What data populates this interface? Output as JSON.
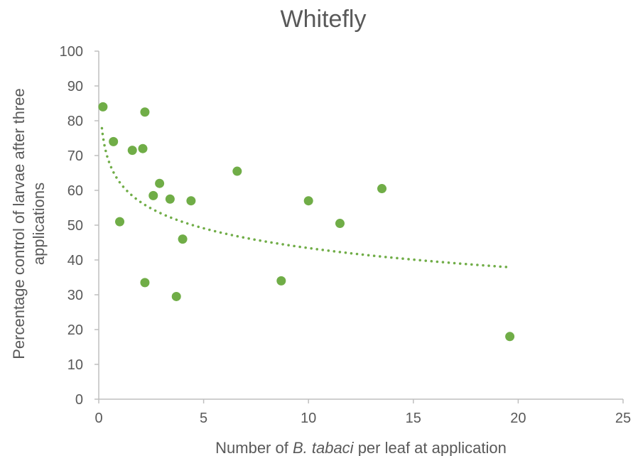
{
  "chart_data": {
    "type": "scatter",
    "title": "Whitefly",
    "xlabel": {
      "prefix": "Number of ",
      "italic": "B. tabaci",
      "suffix": " per leaf at application"
    },
    "ylabel": {
      "line1": "Percentage control of larvae after three",
      "line2": "applications"
    },
    "xlim": [
      0,
      25
    ],
    "ylim": [
      0,
      100
    ],
    "xticks": [
      0,
      5,
      10,
      15,
      20,
      25
    ],
    "yticks": [
      0,
      10,
      20,
      30,
      40,
      50,
      60,
      70,
      80,
      90,
      100
    ],
    "grid": false,
    "colors": {
      "points": "#70ad47",
      "trend": "#70ad47",
      "axis": "#bfbfbf",
      "text": "#595959"
    },
    "series": [
      {
        "points": [
          {
            "x": 0.2,
            "y": 84
          },
          {
            "x": 0.7,
            "y": 74
          },
          {
            "x": 1.0,
            "y": 51
          },
          {
            "x": 1.6,
            "y": 71.5
          },
          {
            "x": 2.1,
            "y": 72
          },
          {
            "x": 2.2,
            "y": 82.5
          },
          {
            "x": 2.2,
            "y": 33.5
          },
          {
            "x": 2.6,
            "y": 58.5
          },
          {
            "x": 2.9,
            "y": 62
          },
          {
            "x": 3.4,
            "y": 57.5
          },
          {
            "x": 3.7,
            "y": 29.5
          },
          {
            "x": 4.0,
            "y": 46
          },
          {
            "x": 4.4,
            "y": 57
          },
          {
            "x": 6.6,
            "y": 65.5
          },
          {
            "x": 8.7,
            "y": 34
          },
          {
            "x": 10.0,
            "y": 57
          },
          {
            "x": 11.5,
            "y": 50.5
          },
          {
            "x": 13.5,
            "y": 60.5
          },
          {
            "x": 19.6,
            "y": 18
          }
        ]
      }
    ],
    "trendline": {
      "type": "logarithmic",
      "style": "dotted",
      "intercept": 62.3,
      "slope": -8.2,
      "x_range": [
        0.15,
        19.6
      ]
    }
  }
}
